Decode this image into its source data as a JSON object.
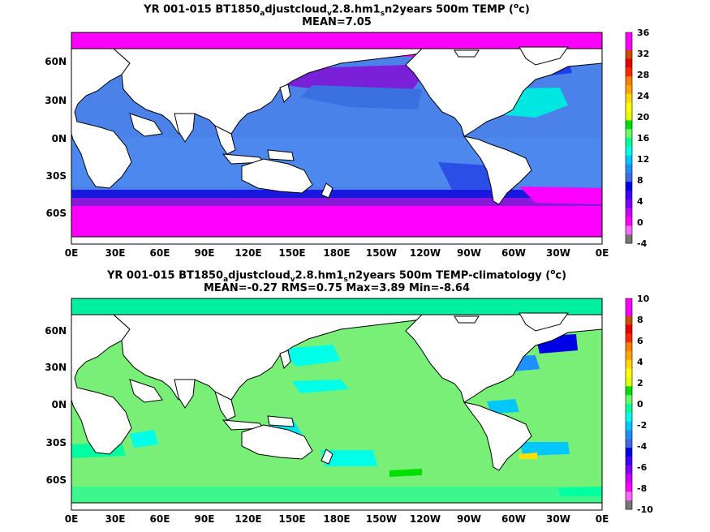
{
  "panels": [
    {
      "title_parts": [
        "YR 001-015 BT1850",
        "a",
        "djustcloud",
        "v",
        "2.8.hm1",
        "s",
        "n2years 500m TEMP (",
        "o",
        "c)"
      ],
      "subtitle": "MEAN=7.05",
      "lat_labels": [
        "60N",
        "30N",
        "0N",
        "30S",
        "60S"
      ],
      "lon_labels": [
        "0E",
        "30E",
        "60E",
        "90E",
        "120E",
        "150E",
        "180E",
        "150W",
        "120W",
        "90W",
        "60W",
        "30W",
        "0E"
      ],
      "colorbar": {
        "labels": [
          "36",
          "32",
          "28",
          "24",
          "20",
          "16",
          "12",
          "8",
          "4",
          "0",
          "-4"
        ],
        "colors": [
          "#ff00ff",
          "#ff00ff",
          "#cc4c00",
          "#e60000",
          "#ff2600",
          "#ff7f00",
          "#ffa500",
          "#ffd800",
          "#ffff00",
          "#e6ff00",
          "#00e000",
          "#66ff66",
          "#00ff99",
          "#00ffe6",
          "#00c8ff",
          "#1e90ff",
          "#4169e1",
          "#0000e6",
          "#4000ff",
          "#8000ff",
          "#cc00ff",
          "#ff00ff",
          "#ff66ff",
          "#777777"
        ]
      }
    },
    {
      "title_parts": [
        "YR 001-015 BT1850",
        "a",
        "djustcloud",
        "v",
        "2.8.hm1",
        "s",
        "n2years 500m TEMP-climatology (",
        "o",
        "c)"
      ],
      "subtitle": "MEAN=-0.27   RMS=0.75   Max=3.89   Min=-8.64",
      "lat_labels": [
        "60N",
        "30N",
        "0N",
        "30S",
        "60S"
      ],
      "lon_labels": [
        "0E",
        "30E",
        "60E",
        "90E",
        "120E",
        "150E",
        "180E",
        "150W",
        "120W",
        "90W",
        "60W",
        "30W",
        "0E"
      ],
      "colorbar": {
        "labels": [
          "10",
          "8",
          "6",
          "4",
          "2",
          "0",
          "-2",
          "-4",
          "-6",
          "-8",
          "-10"
        ],
        "colors": [
          "#ff00ff",
          "#ff00ff",
          "#cc4c00",
          "#e60000",
          "#ff2600",
          "#ff7f00",
          "#ffa500",
          "#ffd800",
          "#ffff00",
          "#e6ff00",
          "#00e000",
          "#66ff66",
          "#00ff99",
          "#00ffe6",
          "#00c8ff",
          "#1e90ff",
          "#4169e1",
          "#0000e6",
          "#4000ff",
          "#8000ff",
          "#cc00ff",
          "#ff00ff",
          "#ff66ff",
          "#777777"
        ]
      }
    }
  ]
}
